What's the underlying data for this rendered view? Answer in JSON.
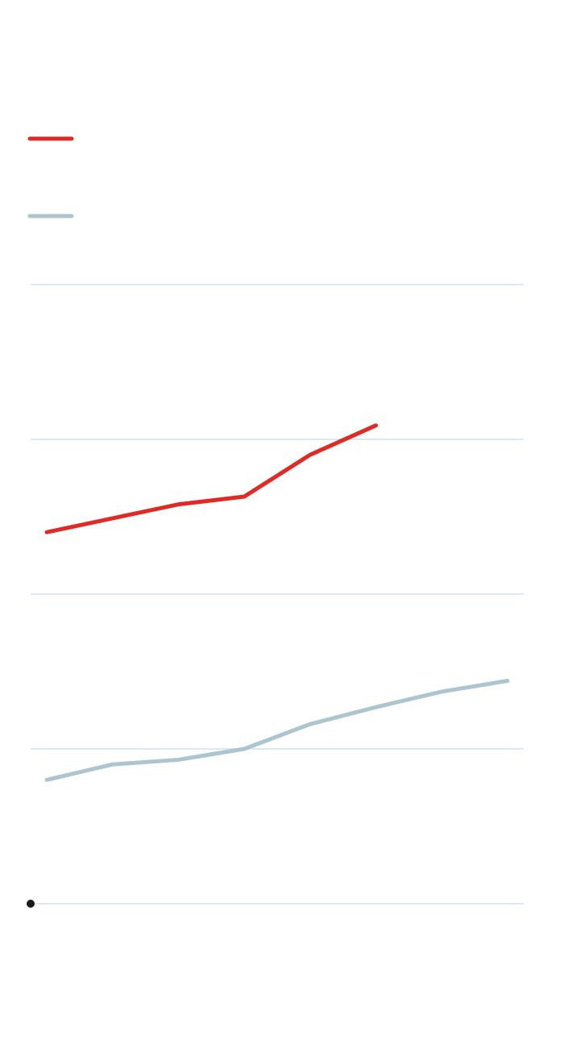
{
  "chart_data": {
    "type": "line",
    "categories": [
      null,
      null,
      null,
      null,
      null,
      null,
      null,
      null
    ],
    "series": [
      {
        "color": "#e02a26",
        "values": [
          2.4,
          2.49,
          2.58,
          2.63,
          2.9,
          3.09,
          null,
          null
        ]
      },
      {
        "color": "#adc5ce",
        "values": [
          0.8,
          0.9,
          0.93,
          1.0,
          1.16,
          1.27,
          1.37,
          1.44
        ]
      }
    ],
    "ylim": [
      0,
      4
    ],
    "yticks": [
      0,
      1,
      2,
      3,
      4
    ],
    "grid": true
  }
}
